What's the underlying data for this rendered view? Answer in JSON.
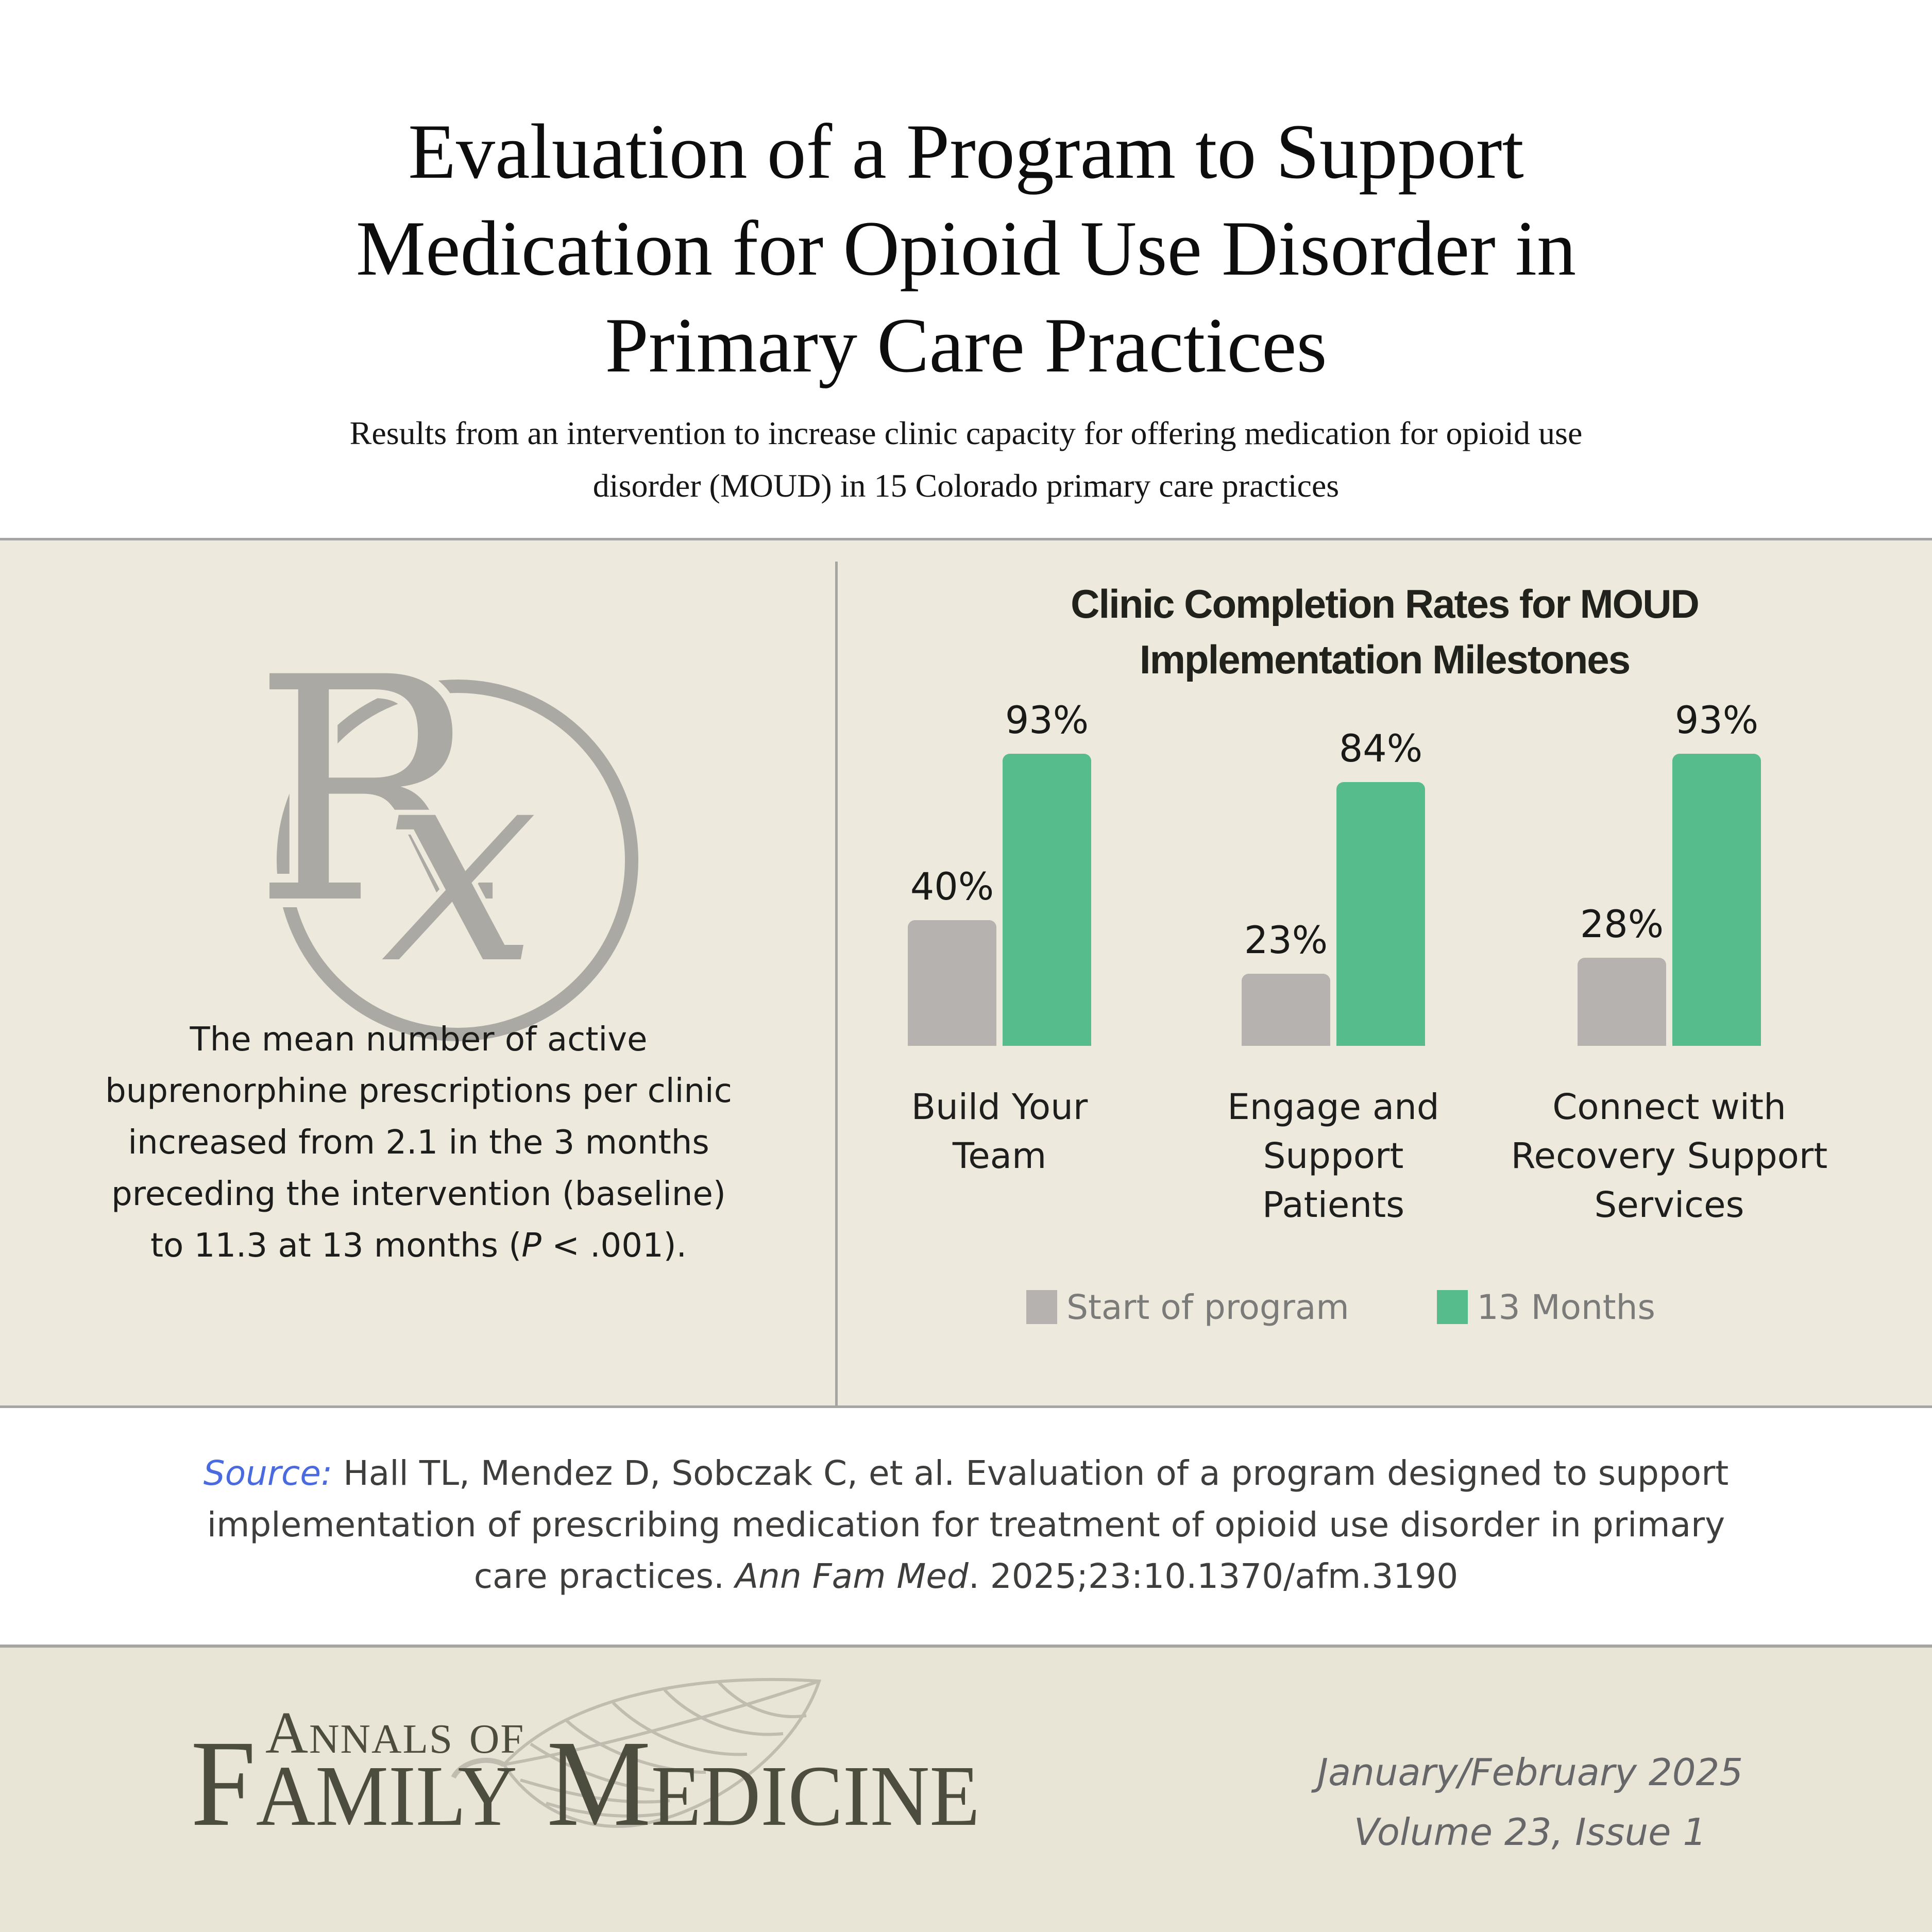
{
  "header": {
    "title_lines": [
      "Evaluation of a Program to Support",
      "Medication for Opioid Use Disorder in",
      "Primary Care Practices"
    ],
    "subtitle_lines": [
      "Results from an intervention to increase clinic capacity for offering medication for opioid use",
      "disorder (MOUD) in 15 Colorado primary care practices"
    ]
  },
  "left_panel": {
    "rx_icon": "rx-prescription-icon",
    "paragraph_lines": [
      "The mean number of active",
      "buprenorphine prescriptions per clinic",
      "increased from 2.1 in the 3 months",
      "preceding the intervention (baseline)"
    ],
    "last_line": {
      "pre": "to 11.3 at 13 months (",
      "italic": "P",
      "post": " < .001)."
    }
  },
  "chart_data": {
    "type": "bar",
    "title": "Clinic Completion Rates for MOUD Implementation Milestones",
    "title_lines": [
      "Clinic Completion Rates for MOUD",
      "Implementation Milestones"
    ],
    "categories": [
      "Build Your Team",
      "Engage and Support Patients",
      "Connect with Recovery Support Services"
    ],
    "category_label_lines": [
      [
        "Build Your",
        "Team"
      ],
      [
        "Engage and",
        "Support",
        "Patients"
      ],
      [
        "Connect with",
        "Recovery Support",
        "Services"
      ]
    ],
    "series": [
      {
        "name": "Start of program",
        "values": [
          40,
          23,
          28
        ],
        "color": "#B5B2AF"
      },
      {
        "name": "13 Months",
        "values": [
          93,
          84,
          93
        ],
        "color": "#57BC8B"
      }
    ],
    "value_suffix": "%",
    "xlabel": "",
    "ylabel": "",
    "ylim": [
      0,
      100
    ],
    "grid": false,
    "legend_position": "bottom"
  },
  "source": {
    "label": "Source:",
    "line1_rest": " Hall TL, Mendez D, Sobczak C, et al. Evaluation of a program designed to support",
    "line2": "implementation of prescribing medication for treatment of opioid use disorder in primary",
    "line3_pre": "care practices. ",
    "line3_italic": "Ann Fam Med",
    "line3_post": ". 2025;23:10.1370/afm.3190"
  },
  "footer": {
    "journal_name_top": "Annals of",
    "journal_name_main": "Family Medicine",
    "issue_lines": [
      "January/February 2025",
      "Volume 23, Issue 1"
    ]
  },
  "colors": {
    "main_bg": "#EDEADD",
    "footer_bg": "#E9E5D6",
    "divider": "#A5A5A3",
    "bar_gray": "#B5B2AF",
    "bar_green": "#57BC8B",
    "legend_text": "#7B7B79",
    "rx_gray": "#ABA9A4",
    "logo_olive": "#4D4D3F",
    "source_blue": "#4A6BE0"
  }
}
